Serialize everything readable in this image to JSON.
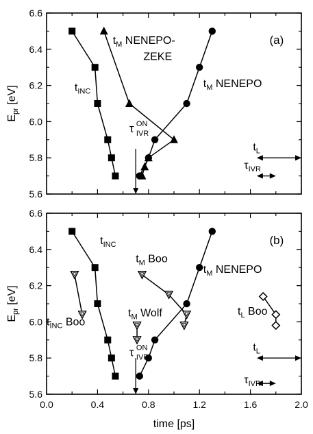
{
  "chart_data": [
    {
      "type": "line",
      "panel_label": "(a)",
      "xlim": [
        0.0,
        2.0
      ],
      "ylim": [
        5.6,
        6.6
      ],
      "xticks": [
        "",
        "",
        "",
        "",
        "",
        "",
        "",
        "",
        "",
        "",
        ""
      ],
      "xlabel": "",
      "yticks": [
        "5.6",
        "5.8",
        "6.0",
        "6.2",
        "6.4",
        "6.6"
      ],
      "ylabel": {
        "main": "E",
        "sub": "pr",
        "unit": " [eV]"
      },
      "series": [
        {
          "name": "t_INC",
          "marker": "square-filled",
          "x": [
            0.2,
            0.38,
            0.4,
            0.48,
            0.51,
            0.54
          ],
          "y": [
            6.5,
            6.3,
            6.1,
            5.9,
            5.8,
            5.7
          ]
        },
        {
          "name": "t_M NENEPO-ZEKE",
          "marker": "triangle-filled",
          "x": [
            0.45,
            0.65,
            1.0,
            0.8,
            0.77,
            0.75
          ],
          "y": [
            6.5,
            6.1,
            5.9,
            5.8,
            5.75,
            5.7
          ]
        },
        {
          "name": "t_M NENEPO",
          "marker": "circle-filled",
          "x": [
            1.3,
            1.2,
            1.1,
            0.85,
            0.8,
            0.73
          ],
          "y": [
            6.5,
            6.3,
            6.1,
            5.9,
            5.8,
            5.7
          ]
        }
      ],
      "annotations": [
        {
          "id": "tinc",
          "main": "t",
          "sub": "INC",
          "text": "",
          "x": 0.22,
          "y": 6.17
        },
        {
          "id": "tm-zeke",
          "main": "t",
          "sub": "M",
          "text": " NENEPO-",
          "x": 0.52,
          "y": 6.43
        },
        {
          "id": "zeke",
          "main": "",
          "sub": "",
          "text": "ZEKE",
          "x": 0.76,
          "y": 6.34
        },
        {
          "id": "tm-nenepo",
          "main": "t",
          "sub": "M",
          "text": " NENEPO",
          "x": 1.23,
          "y": 6.19
        },
        {
          "id": "tl",
          "main": "t",
          "sub": "L",
          "text": "",
          "x": 1.62,
          "y": 5.84
        },
        {
          "id": "tau-ivr",
          "main": "τ",
          "sub": "IVR",
          "text": "",
          "x": 1.55,
          "y": 5.74
        }
      ],
      "tau_on": {
        "main": "τ",
        "sup": "ON",
        "sub": "IVR",
        "x": 0.65,
        "y": 5.94
      },
      "arrows": [
        {
          "kind": "down",
          "x": 0.7,
          "y1": 5.85,
          "y2": 5.6
        },
        {
          "kind": "double",
          "y": 5.8,
          "x1": 1.65,
          "x2": 2.0
        },
        {
          "kind": "double",
          "y": 5.7,
          "x1": 1.65,
          "x2": 1.8
        }
      ]
    },
    {
      "type": "line",
      "panel_label": "(b)",
      "xlim": [
        0.0,
        2.0
      ],
      "ylim": [
        5.6,
        6.6
      ],
      "xticks": [
        "0.0",
        "0.4",
        "0.8",
        "1.2",
        "1.6",
        "2.0"
      ],
      "xlabel": "time [ps]",
      "yticks": [
        "5.6",
        "5.8",
        "6.0",
        "6.2",
        "6.4",
        "6.6"
      ],
      "ylabel": {
        "main": "E",
        "sub": "pr",
        "unit": " [eV]"
      },
      "series": [
        {
          "name": "t_INC",
          "marker": "square-filled",
          "x": [
            0.2,
            0.38,
            0.4,
            0.48,
            0.51,
            0.54
          ],
          "y": [
            6.5,
            6.3,
            6.1,
            5.9,
            5.8,
            5.7
          ]
        },
        {
          "name": "t_M NENEPO",
          "marker": "circle-filled",
          "x": [
            1.3,
            1.2,
            1.1,
            0.85,
            0.8,
            0.73
          ],
          "y": [
            6.5,
            6.3,
            6.1,
            5.9,
            5.8,
            5.7
          ]
        },
        {
          "name": "t_INC Boo",
          "marker": "triangle-down-open",
          "x": [
            0.22,
            0.28
          ],
          "y": [
            6.26,
            6.04
          ]
        },
        {
          "name": "t_M Boo",
          "marker": "triangle-down-open",
          "x": [
            0.75,
            0.96,
            1.1,
            1.08
          ],
          "y": [
            6.26,
            6.15,
            6.04,
            5.98
          ]
        },
        {
          "name": "t_M Wolf",
          "marker": "triangle-down-open",
          "x": [
            0.71,
            0.71
          ],
          "y": [
            5.98,
            5.9
          ]
        },
        {
          "name": "t_L Boo",
          "marker": "diamond-open",
          "x": [
            1.7,
            1.8,
            1.8
          ],
          "y": [
            6.14,
            6.04,
            5.98
          ]
        }
      ],
      "annotations": [
        {
          "id": "tinc",
          "main": "t",
          "sub": "INC",
          "text": "",
          "x": 0.42,
          "y": 6.43
        },
        {
          "id": "tinc-boo",
          "main": "t",
          "sub": "INC",
          "text": " Boo",
          "x": 0.0,
          "y": 5.98
        },
        {
          "id": "tm-boo",
          "main": "t",
          "sub": "M",
          "text": " Boo",
          "x": 0.7,
          "y": 6.33
        },
        {
          "id": "tm-nenepo",
          "main": "t",
          "sub": "M",
          "text": " NENEPO",
          "x": 1.23,
          "y": 6.27
        },
        {
          "id": "tm-wolf",
          "main": "t",
          "sub": "M",
          "text": " Wolf",
          "x": 0.64,
          "y": 6.03
        },
        {
          "id": "tl-boo",
          "main": "t",
          "sub": "L",
          "text": " Boo",
          "x": 1.5,
          "y": 6.04
        },
        {
          "id": "tl",
          "main": "t",
          "sub": "L",
          "text": "",
          "x": 1.62,
          "y": 5.84
        },
        {
          "id": "tau-ivr",
          "main": "τ",
          "sub": "IVR",
          "text": "",
          "x": 1.55,
          "y": 5.66
        }
      ],
      "tau_on": {
        "main": "τ",
        "sup": "ON",
        "sub": "IVR",
        "x": 0.65,
        "y": 5.81
      },
      "arrows": [
        {
          "kind": "down",
          "x": 0.7,
          "y1": 5.8,
          "y2": 5.6
        },
        {
          "kind": "double",
          "y": 5.8,
          "x1": 1.65,
          "x2": 2.0
        },
        {
          "kind": "double",
          "y": 5.66,
          "x1": 1.65,
          "x2": 1.8
        }
      ]
    }
  ]
}
